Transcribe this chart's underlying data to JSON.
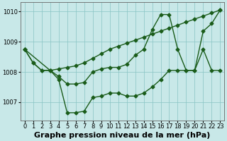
{
  "xlabel": "Graphe pression niveau de la mer (hPa)",
  "background_color": "#c8e8e8",
  "plot_bg_color": "#c8e8e8",
  "grid_color": "#88c4c4",
  "line_color": "#1a5c1a",
  "xlim": [
    -0.5,
    23.5
  ],
  "ylim": [
    1006.4,
    1010.3
  ],
  "yticks": [
    1007,
    1008,
    1009,
    1010
  ],
  "xtick_labels": [
    "0",
    "1",
    "2",
    "3",
    "4",
    "5",
    "6",
    "7",
    "8",
    "9",
    "10",
    "11",
    "12",
    "13",
    "14",
    "15",
    "16",
    "17",
    "18",
    "19",
    "20",
    "21",
    "22",
    "23"
  ],
  "line1_x": [
    0,
    1,
    2,
    3,
    4,
    5,
    6,
    7,
    8,
    9,
    10,
    11,
    12,
    13,
    14,
    15,
    16,
    17,
    18,
    19,
    20,
    21,
    22,
    23
  ],
  "line1_y": [
    1008.75,
    1008.3,
    1008.05,
    1008.05,
    1008.1,
    1008.15,
    1008.2,
    1008.3,
    1008.45,
    1008.6,
    1008.75,
    1008.85,
    1008.95,
    1009.05,
    1009.15,
    1009.25,
    1009.35,
    1009.45,
    1009.55,
    1009.65,
    1009.75,
    1009.85,
    1009.95,
    1010.05
  ],
  "line2_x": [
    0,
    3,
    4,
    5,
    6,
    7,
    8,
    9,
    10,
    11,
    12,
    13,
    14,
    15,
    16,
    17,
    18,
    19,
    20,
    21,
    22,
    23
  ],
  "line2_y": [
    1008.75,
    1008.05,
    1007.85,
    1007.6,
    1007.6,
    1007.65,
    1008.0,
    1008.1,
    1008.15,
    1008.15,
    1008.25,
    1008.55,
    1008.75,
    1009.4,
    1009.9,
    1009.9,
    1008.75,
    1008.05,
    1008.05,
    1009.35,
    1009.6,
    1010.05
  ],
  "line3_x": [
    0,
    1,
    2,
    3,
    4,
    5,
    6,
    7,
    8,
    9,
    10,
    11,
    12,
    13,
    14,
    15,
    16,
    17,
    18,
    19,
    20,
    21,
    22,
    23
  ],
  "line3_y": [
    1008.75,
    1008.3,
    1008.05,
    1008.05,
    1007.75,
    1006.65,
    1006.65,
    1006.7,
    1007.15,
    1007.2,
    1007.3,
    1007.3,
    1007.2,
    1007.2,
    1007.3,
    1007.5,
    1007.75,
    1008.05,
    1008.05,
    1008.05,
    1008.05,
    1008.75,
    1008.05,
    1008.05
  ],
  "marker": "D",
  "markersize": 2.5,
  "linewidth": 1.0,
  "xlabel_fontsize": 8,
  "tick_fontsize": 6,
  "xlabel_fontweight": "bold",
  "figsize": [
    3.2,
    2.0
  ],
  "dpi": 100
}
